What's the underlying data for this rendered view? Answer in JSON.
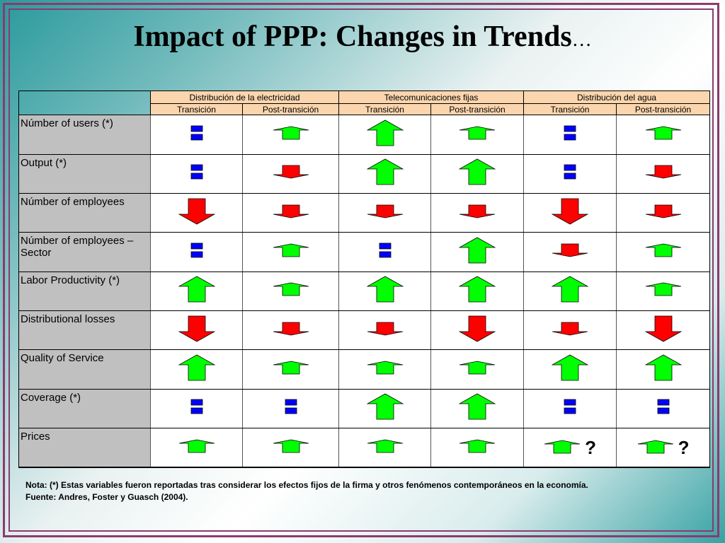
{
  "title": "Impact of PPP: Changes in Trends",
  "title_ellipsis": "…",
  "colors": {
    "up": "#00ff00",
    "down": "#ff0000",
    "equal": "#0000ff",
    "header_bg": "#fbd5ad",
    "label_bg": "#c0c0c0",
    "frame": "#8c3a6e"
  },
  "sectors": [
    "Distribución de la electricidad",
    "Telecomunicaciones fijas",
    "Distribución del agua"
  ],
  "phases": [
    "Transición",
    "Post-transición",
    "Transición",
    "Post-transición",
    "Transición",
    "Post-transición"
  ],
  "rows": [
    {
      "label": "Númber of users (*)",
      "cells": [
        {
          "trend": "equal",
          "size": "small"
        },
        {
          "trend": "up",
          "size": "small"
        },
        {
          "trend": "up",
          "size": "large"
        },
        {
          "trend": "up",
          "size": "small"
        },
        {
          "trend": "equal",
          "size": "small"
        },
        {
          "trend": "up",
          "size": "small"
        }
      ]
    },
    {
      "label": "Output (*)",
      "cells": [
        {
          "trend": "equal",
          "size": "small"
        },
        {
          "trend": "down",
          "size": "small"
        },
        {
          "trend": "up",
          "size": "large"
        },
        {
          "trend": "up",
          "size": "large"
        },
        {
          "trend": "equal",
          "size": "small"
        },
        {
          "trend": "down",
          "size": "small"
        }
      ]
    },
    {
      "label": "Númber of employees",
      "cells": [
        {
          "trend": "down",
          "size": "large"
        },
        {
          "trend": "down",
          "size": "small"
        },
        {
          "trend": "down",
          "size": "small"
        },
        {
          "trend": "down",
          "size": "small"
        },
        {
          "trend": "down",
          "size": "large"
        },
        {
          "trend": "down",
          "size": "small"
        }
      ]
    },
    {
      "label": "Númber of employees – Sector",
      "cells": [
        {
          "trend": "equal",
          "size": "small"
        },
        {
          "trend": "up",
          "size": "small"
        },
        {
          "trend": "equal",
          "size": "small"
        },
        {
          "trend": "up",
          "size": "large"
        },
        {
          "trend": "down",
          "size": "small"
        },
        {
          "trend": "up",
          "size": "small"
        }
      ]
    },
    {
      "label": "Labor Productivity (*)",
      "cells": [
        {
          "trend": "up",
          "size": "large"
        },
        {
          "trend": "up",
          "size": "small"
        },
        {
          "trend": "up",
          "size": "large"
        },
        {
          "trend": "up",
          "size": "large"
        },
        {
          "trend": "up",
          "size": "large"
        },
        {
          "trend": "up",
          "size": "small"
        }
      ]
    },
    {
      "label": "Distributional losses",
      "cells": [
        {
          "trend": "down",
          "size": "large"
        },
        {
          "trend": "down",
          "size": "small"
        },
        {
          "trend": "down",
          "size": "small"
        },
        {
          "trend": "down",
          "size": "large"
        },
        {
          "trend": "down",
          "size": "small"
        },
        {
          "trend": "down",
          "size": "large"
        }
      ]
    },
    {
      "label": "Quality of Service",
      "cells": [
        {
          "trend": "up",
          "size": "large"
        },
        {
          "trend": "up",
          "size": "small"
        },
        {
          "trend": "up",
          "size": "small"
        },
        {
          "trend": "up",
          "size": "small"
        },
        {
          "trend": "up",
          "size": "large"
        },
        {
          "trend": "up",
          "size": "large"
        }
      ]
    },
    {
      "label": "Coverage (*)",
      "cells": [
        {
          "trend": "equal",
          "size": "small"
        },
        {
          "trend": "equal",
          "size": "small"
        },
        {
          "trend": "up",
          "size": "large"
        },
        {
          "trend": "up",
          "size": "large"
        },
        {
          "trend": "equal",
          "size": "small"
        },
        {
          "trend": "equal",
          "size": "small"
        }
      ]
    },
    {
      "label": "Prices",
      "cells": [
        {
          "trend": "up",
          "size": "small"
        },
        {
          "trend": "up",
          "size": "small"
        },
        {
          "trend": "up",
          "size": "small"
        },
        {
          "trend": "up",
          "size": "small"
        },
        {
          "trend": "up",
          "size": "small",
          "mark": "?"
        },
        {
          "trend": "up",
          "size": "small",
          "mark": "?"
        }
      ]
    }
  ],
  "notes": {
    "line1": "Nota: (*) Estas variables fueron reportadas tras considerar los efectos fijos de la firma y otros fenómenos contemporáneos en  la economía.",
    "line2": "Fuente: Andres, Foster y Guasch (2004)."
  }
}
